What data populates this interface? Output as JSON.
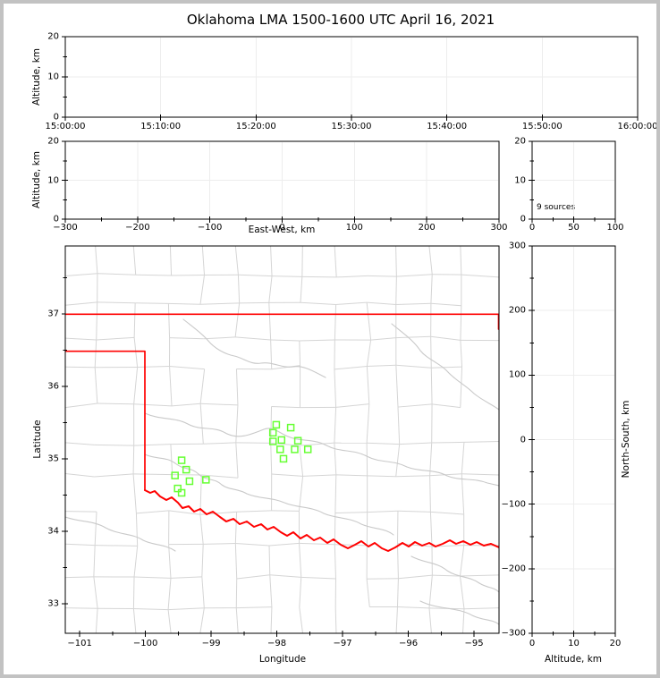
{
  "figure": {
    "title": "Oklahoma LMA 1500-1600 UTC April 16, 2021",
    "frame_color": "#c2c2c2",
    "background": "#ffffff"
  },
  "colors": {
    "gridline": "#ededed",
    "county_line": "#d5d5d5",
    "river_line": "#c9c9c9",
    "state_border": "#ff0000",
    "source_marker": "#66ff33",
    "axis": "#000000"
  },
  "chart_data": [
    {
      "id": "altitude_vs_time",
      "type": "scatter",
      "xlabel": "",
      "ylabel": "Altitude, km",
      "x_axis": "time (UTC)",
      "xticks": [
        "15:00:00",
        "15:10:00",
        "15:20:00",
        "15:30:00",
        "15:40:00",
        "15:50:00",
        "16:00:00"
      ],
      "ylim": [
        0,
        20
      ],
      "yticks": [
        0,
        10,
        20
      ],
      "grid": true,
      "points": []
    },
    {
      "id": "altitude_vs_east_west",
      "type": "scatter",
      "xlabel": "East-West, km",
      "ylabel": "Altitude, km",
      "xlim": [
        -300,
        300
      ],
      "xticks": [
        -300,
        -200,
        -100,
        0,
        100,
        200,
        300
      ],
      "ylim": [
        0,
        20
      ],
      "yticks": [
        0,
        10,
        20
      ],
      "grid": true,
      "points": []
    },
    {
      "id": "source_histogram",
      "type": "histogram",
      "annotation": "9 sources",
      "source_count": 9,
      "xlim": [
        0,
        100
      ],
      "xticks": [
        0,
        50,
        100
      ],
      "ylim": [
        0,
        20
      ],
      "yticks": [
        0,
        10,
        20
      ],
      "grid": true,
      "points": []
    },
    {
      "id": "plan_view_map",
      "type": "scatter",
      "xlabel": "Longitude",
      "ylabel": "Latitude",
      "xlim": [
        -101.22,
        -94.62
      ],
      "xticks": [
        -101,
        -100,
        -99,
        -98,
        -97,
        -96,
        -95
      ],
      "ylim": [
        32.59,
        37.94
      ],
      "yticks": [
        33,
        34,
        35,
        36,
        37
      ],
      "grid": false,
      "marker": "open-square",
      "marker_color": "#66ff33",
      "overlays": [
        "county-borders-gray",
        "rivers-gray",
        "oklahoma-state-border-red"
      ],
      "points": [
        [
          -99.45,
          34.98
        ],
        [
          -99.38,
          34.85
        ],
        [
          -99.55,
          34.77
        ],
        [
          -99.33,
          34.69
        ],
        [
          -99.08,
          34.71
        ],
        [
          -99.51,
          34.59
        ],
        [
          -99.45,
          34.53
        ],
        [
          -98.01,
          35.47
        ],
        [
          -97.79,
          35.43
        ],
        [
          -98.06,
          35.36
        ],
        [
          -98.06,
          35.24
        ],
        [
          -97.93,
          35.26
        ],
        [
          -97.68,
          35.25
        ],
        [
          -97.95,
          35.13
        ],
        [
          -97.73,
          35.13
        ],
        [
          -97.53,
          35.13
        ],
        [
          -97.9,
          35.0
        ]
      ]
    },
    {
      "id": "north_south_vs_altitude",
      "type": "scatter",
      "xlabel": "Altitude, km",
      "ylabel": "North-South, km",
      "xlim": [
        0,
        20
      ],
      "xticks": [
        0,
        10,
        20
      ],
      "ylim": [
        -300,
        300
      ],
      "yticks": [
        -300,
        -200,
        -100,
        0,
        100,
        200,
        300
      ],
      "grid": true,
      "points": []
    }
  ]
}
